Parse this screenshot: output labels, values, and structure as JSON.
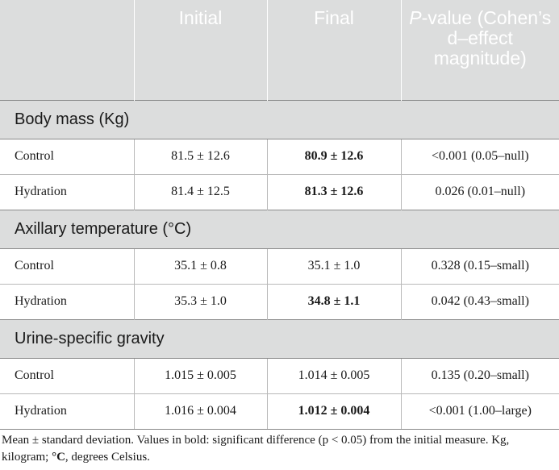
{
  "header": {
    "col_initial": "Initial",
    "col_final": "Final",
    "col_p_italic": "P",
    "col_p_rest": "-value (Cohen’s d–effect magnitude)"
  },
  "sections": [
    {
      "title": "Body mass (Kg)",
      "rows": [
        {
          "group": "Control",
          "initial": "81.5 ± 12.6",
          "final": "80.9 ± 12.6",
          "final_bold": true,
          "p": "<0.001 (0.05–null)"
        },
        {
          "group": "Hydration",
          "initial": "81.4 ± 12.5",
          "final": "81.3 ± 12.6",
          "final_bold": true,
          "p": "0.026 (0.01–null)"
        }
      ]
    },
    {
      "title": "Axillary temperature (°C)",
      "rows": [
        {
          "group": "Control",
          "initial": "35.1 ± 0.8",
          "final": "35.1 ± 1.0",
          "final_bold": false,
          "p": "0.328 (0.15–small)"
        },
        {
          "group": "Hydration",
          "initial": "35.3 ± 1.0",
          "final": "34.8 ± 1.1",
          "final_bold": true,
          "p": "0.042 (0.43–small)"
        }
      ]
    },
    {
      "title": "Urine-specific gravity",
      "rows": [
        {
          "group": "Control",
          "initial": "1.015 ± 0.005",
          "final": "1.014 ± 0.005",
          "final_bold": false,
          "p": "0.135 (0.20–small)"
        },
        {
          "group": "Hydration",
          "initial": "1.016 ± 0.004",
          "final": "1.012 ± 0.004",
          "final_bold": true,
          "p": "<0.001 (1.00–large)"
        }
      ]
    }
  ],
  "footnote": {
    "part1": "Mean ± standard deviation. Values in bold: significant difference (p < 0.05) from the initial measure. Kg, kilogram; ",
    "bold": "°C",
    "part2": ", degrees Celsius."
  }
}
